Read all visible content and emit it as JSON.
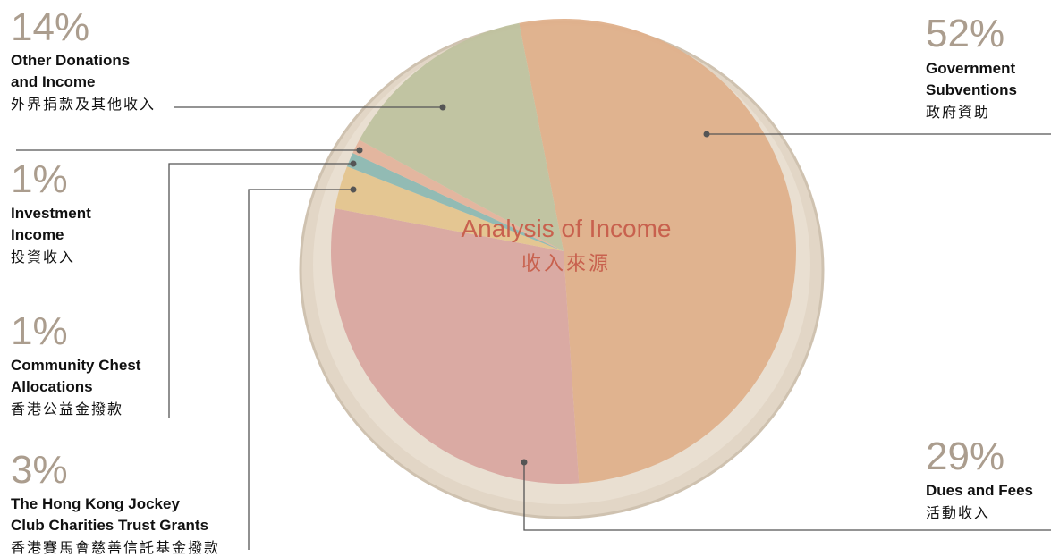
{
  "chart_data": {
    "type": "pie",
    "title": "Analysis of Income",
    "subtitle": "收入來源",
    "categories": [
      [
        "Government",
        "Subventions"
      ],
      [
        "Dues and Fees"
      ],
      [
        "The Hong Kong Jockey",
        "Club Charities Trust Grants"
      ],
      [
        "Community Chest",
        "Allocations"
      ],
      [
        "Investment",
        "Income"
      ],
      [
        "Other Donations",
        "and Income"
      ]
    ],
    "categories_zh": [
      "政府資助",
      "活動收入",
      "香港賽馬會慈善信託基金撥款",
      "香港公益金撥款",
      "投資收入",
      "外界捐款及其他收入"
    ],
    "values": [
      52,
      29,
      3,
      1,
      1,
      14
    ],
    "value_labels": [
      "52%",
      "29%",
      "3%",
      "1%",
      "1%",
      "14%"
    ],
    "colors": [
      "#dfb08b",
      "#d9a7a0",
      "#e4c48e",
      "#8db8b2",
      "#e3b39c",
      "#bfc29f"
    ]
  }
}
